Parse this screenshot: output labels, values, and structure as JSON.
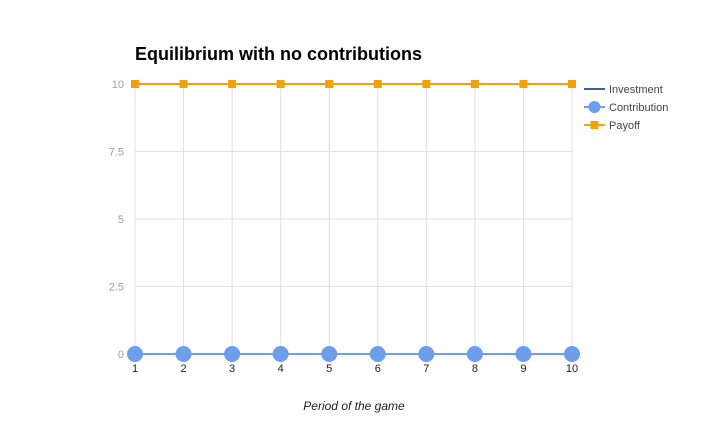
{
  "chart_data": {
    "type": "line",
    "title": "Equilibrium with no contributions",
    "xlabel": "Period of the game",
    "ylabel": "",
    "x": [
      1,
      2,
      3,
      4,
      5,
      6,
      7,
      8,
      9,
      10
    ],
    "x_tick_labels": [
      "1",
      "2",
      "3",
      "4",
      "5",
      "6",
      "7",
      "8",
      "9",
      "10"
    ],
    "y_ticks": [
      0,
      2.5,
      5,
      7.5,
      10
    ],
    "y_tick_labels": [
      "0",
      "2.5",
      "5",
      "7.5",
      "10"
    ],
    "ylim": [
      0,
      10
    ],
    "grid": true,
    "legend_position": "right",
    "series": [
      {
        "name": "Investment",
        "values": [
          0,
          0,
          0,
          0,
          0,
          0,
          0,
          0,
          0,
          0
        ],
        "color": "#3c5fa8",
        "marker": "none"
      },
      {
        "name": "Contribution",
        "values": [
          0,
          0,
          0,
          0,
          0,
          0,
          0,
          0,
          0,
          0
        ],
        "color": "#6d9eeb",
        "marker": "circle"
      },
      {
        "name": "Payoff",
        "values": [
          10,
          10,
          10,
          10,
          10,
          10,
          10,
          10,
          10,
          10
        ],
        "color": "#f1a208",
        "marker": "square"
      }
    ]
  }
}
